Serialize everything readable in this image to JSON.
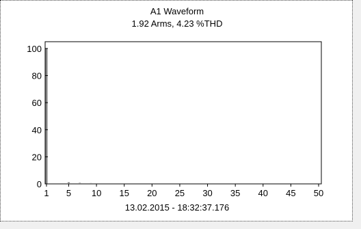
{
  "chart_data": {
    "type": "bar",
    "title": "A1 Waveform",
    "subtitle": "1.92 Arms, 4.23 %THD",
    "xlabel": "13.02.2015 - 18:32:37.176",
    "ylabel": "",
    "x": [
      1,
      2,
      3,
      4,
      5,
      6,
      7,
      8,
      9,
      10,
      11,
      12,
      13,
      14,
      15,
      16,
      17,
      18,
      19,
      20,
      21,
      22,
      23,
      24,
      25,
      26,
      27,
      28,
      29,
      30,
      31,
      32,
      33,
      34,
      35,
      36,
      37,
      38,
      39,
      40,
      41,
      42,
      43,
      44,
      45,
      46,
      47,
      48,
      49,
      50
    ],
    "values": [
      100,
      0.3,
      0.5,
      0.3,
      1.2,
      0.3,
      0.8,
      0.3,
      0.6,
      0.3,
      0.5,
      0.2,
      0.4,
      0.2,
      0.3,
      0.2,
      0.3,
      0.2,
      0.3,
      0.2,
      0.2,
      0.2,
      0.2,
      0.2,
      0.2,
      0.2,
      0.2,
      0.2,
      0.2,
      0.2,
      0.2,
      0.2,
      0.2,
      0.2,
      0.2,
      0.2,
      0.2,
      0.2,
      0.2,
      0.2,
      0.2,
      0.2,
      0.2,
      0.2,
      0.2,
      0.2,
      0.2,
      0.2,
      0.2,
      0.2
    ],
    "xticks": [
      1,
      5,
      10,
      15,
      20,
      25,
      30,
      35,
      40,
      45,
      50
    ],
    "yticks": [
      0,
      20,
      40,
      60,
      80,
      100
    ],
    "xlim": [
      1,
      50
    ],
    "ylim": [
      0,
      105
    ],
    "grid": false,
    "bar_color": "#808080",
    "axis_color": "#000000"
  }
}
